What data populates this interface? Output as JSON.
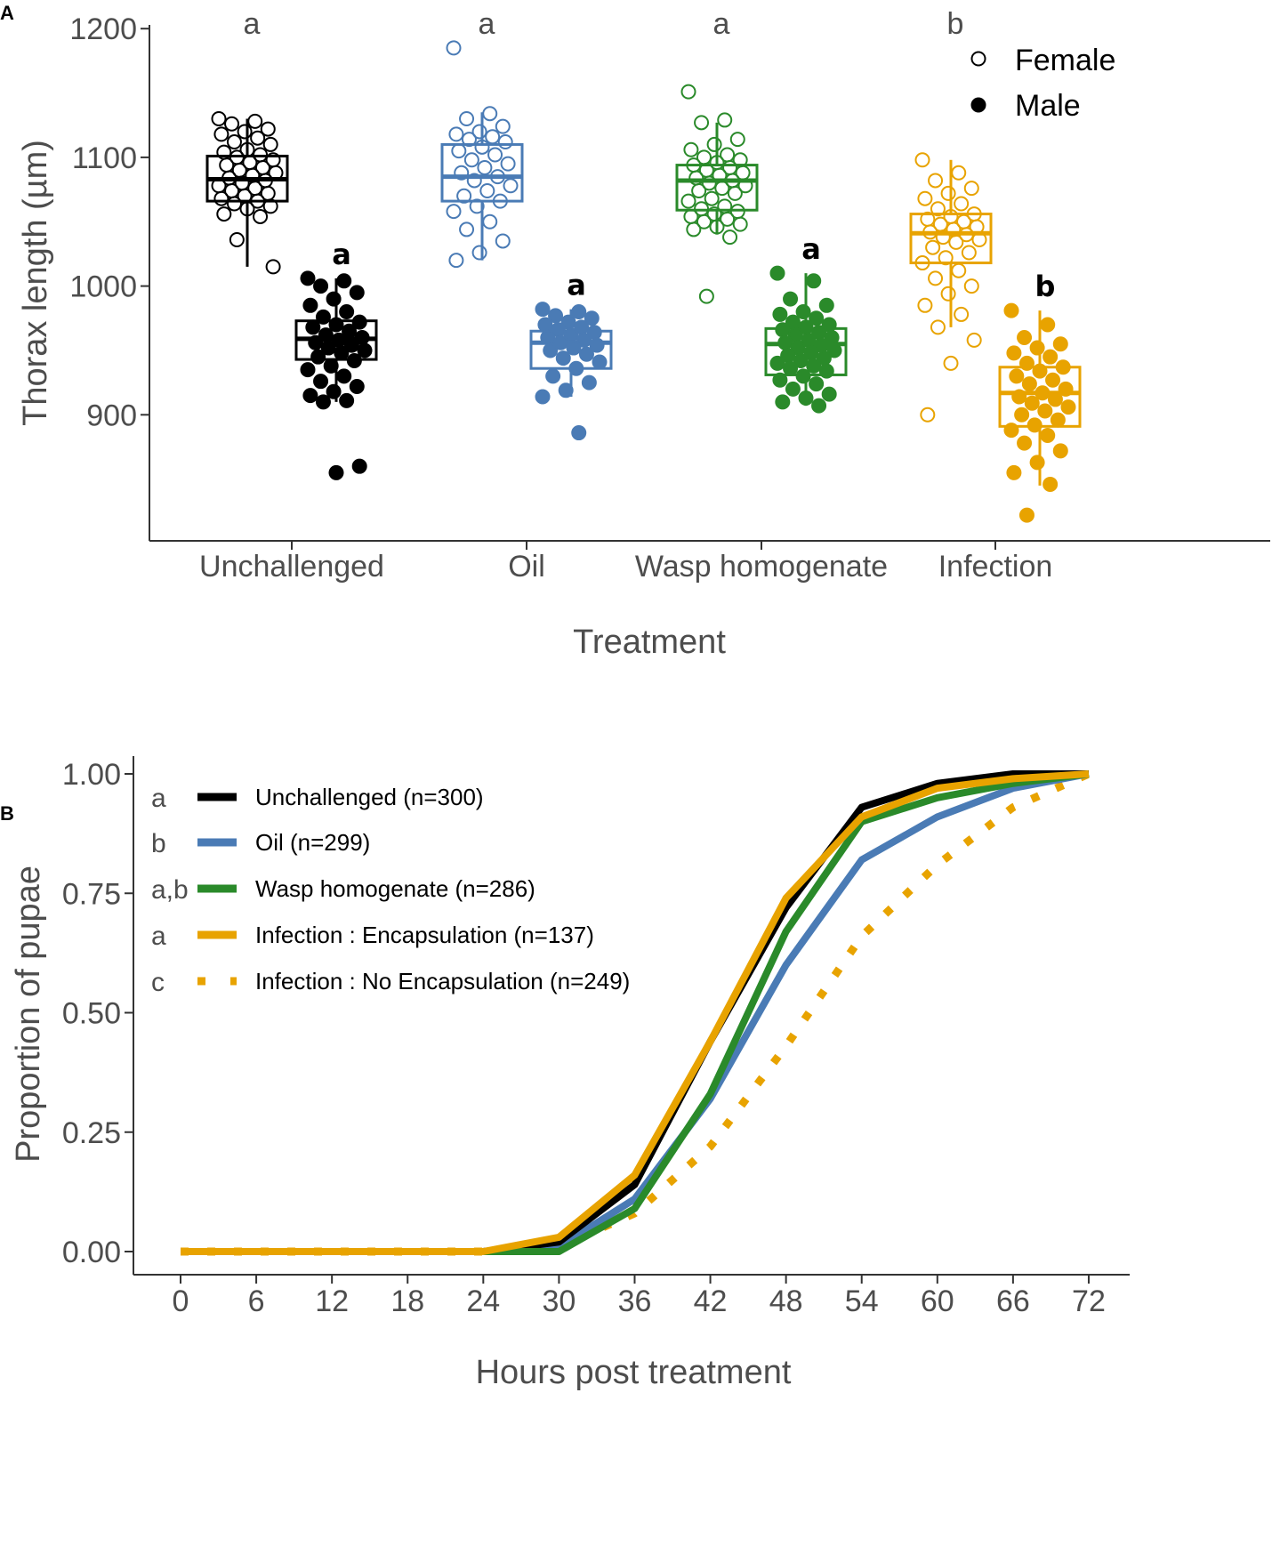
{
  "panels": {
    "a": {
      "label": "A"
    },
    "b": {
      "label": "B"
    }
  },
  "colors": {
    "Unchallenged": "#000000",
    "Oil": "#4a7bb5",
    "Wasp homogenate": "#2a8a2a",
    "Infection": "#e8a300",
    "axis": "#333333",
    "text": "#4d4d4d"
  },
  "chart_data": [
    {
      "type": "box",
      "panel": "A",
      "xlabel": "Treatment",
      "ylabel": "Thorax length (µm)",
      "ylim": [
        800,
        1200
      ],
      "yticks": [
        900,
        1000,
        1100,
        1200
      ],
      "categories": [
        "Unchallenged",
        "Oil",
        "Wasp homogenate",
        "Infection"
      ],
      "legend": {
        "position": "top-right",
        "entries": [
          "Female",
          "Male"
        ]
      },
      "significance_female": [
        "a",
        "a",
        "a",
        "b"
      ],
      "significance_male": [
        "a",
        "a",
        "a",
        "b"
      ],
      "boxes": [
        {
          "category": "Unchallenged",
          "sex": "Female",
          "q1": 1066,
          "median": 1083,
          "q3": 1101,
          "lower": 1015,
          "upper": 1130,
          "points": [
            1130,
            1128,
            1126,
            1122,
            1120,
            1118,
            1115,
            1112,
            1110,
            1106,
            1104,
            1102,
            1100,
            1098,
            1096,
            1094,
            1092,
            1090,
            1088,
            1086,
            1084,
            1082,
            1080,
            1078,
            1076,
            1074,
            1072,
            1070,
            1068,
            1066,
            1064,
            1062,
            1060,
            1056,
            1054,
            1036,
            1015
          ]
        },
        {
          "category": "Unchallenged",
          "sex": "Male",
          "q1": 943,
          "median": 959,
          "q3": 973,
          "lower": 910,
          "upper": 1006,
          "points": [
            1006,
            1004,
            1000,
            995,
            990,
            985,
            980,
            976,
            972,
            970,
            968,
            965,
            962,
            960,
            958,
            956,
            954,
            952,
            950,
            948,
            945,
            942,
            938,
            935,
            930,
            926,
            922,
            918,
            915,
            911,
            910,
            860,
            855
          ]
        },
        {
          "category": "Oil",
          "sex": "Female",
          "q1": 1066,
          "median": 1085,
          "q3": 1110,
          "lower": 1020,
          "upper": 1135,
          "points": [
            1185,
            1134,
            1130,
            1124,
            1120,
            1118,
            1116,
            1114,
            1112,
            1108,
            1105,
            1102,
            1098,
            1095,
            1092,
            1088,
            1085,
            1082,
            1078,
            1074,
            1070,
            1066,
            1062,
            1058,
            1050,
            1044,
            1035,
            1026,
            1020
          ]
        },
        {
          "category": "Oil",
          "sex": "Male",
          "q1": 936,
          "median": 956,
          "q3": 965,
          "lower": 914,
          "upper": 982,
          "points": [
            982,
            980,
            977,
            975,
            972,
            970,
            968,
            966,
            964,
            962,
            960,
            958,
            956,
            954,
            952,
            950,
            947,
            944,
            941,
            936,
            930,
            925,
            919,
            914,
            886
          ]
        },
        {
          "category": "Wasp homogenate",
          "sex": "Female",
          "q1": 1059,
          "median": 1082,
          "q3": 1094,
          "lower": 1040,
          "upper": 1127,
          "points": [
            1151,
            1129,
            1127,
            1114,
            1110,
            1106,
            1102,
            1100,
            1098,
            1096,
            1094,
            1092,
            1090,
            1088,
            1086,
            1084,
            1082,
            1080,
            1078,
            1076,
            1074,
            1072,
            1068,
            1066,
            1062,
            1060,
            1058,
            1056,
            1054,
            1052,
            1050,
            1048,
            1046,
            1044,
            1038,
            992
          ]
        },
        {
          "category": "Wasp homogenate",
          "sex": "Male",
          "q1": 931,
          "median": 955,
          "q3": 967,
          "lower": 907,
          "upper": 1010,
          "points": [
            1010,
            1004,
            990,
            985,
            980,
            978,
            975,
            972,
            970,
            968,
            966,
            964,
            962,
            960,
            958,
            956,
            954,
            952,
            950,
            948,
            946,
            944,
            942,
            940,
            938,
            936,
            934,
            930,
            927,
            924,
            920,
            916,
            913,
            910,
            907
          ]
        },
        {
          "category": "Infection",
          "sex": "Female",
          "q1": 1018,
          "median": 1041,
          "q3": 1056,
          "lower": 968,
          "upper": 1098,
          "points": [
            1098,
            1088,
            1082,
            1076,
            1072,
            1068,
            1064,
            1060,
            1056,
            1054,
            1052,
            1050,
            1048,
            1046,
            1044,
            1042,
            1040,
            1038,
            1036,
            1034,
            1030,
            1026,
            1022,
            1018,
            1012,
            1006,
            1000,
            994,
            985,
            978,
            968,
            958,
            940,
            900
          ]
        },
        {
          "category": "Infection",
          "sex": "Male",
          "q1": 891,
          "median": 917,
          "q3": 937,
          "lower": 845,
          "upper": 981,
          "points": [
            981,
            970,
            960,
            955,
            952,
            948,
            945,
            940,
            937,
            934,
            930,
            927,
            924,
            920,
            917,
            914,
            912,
            909,
            906,
            903,
            900,
            896,
            892,
            888,
            884,
            878,
            872,
            863,
            855,
            846,
            822
          ]
        }
      ]
    },
    {
      "type": "line",
      "panel": "B",
      "xlabel": "Hours post treatment",
      "ylabel": "Proportion of pupae",
      "x": [
        0,
        6,
        12,
        18,
        24,
        30,
        36,
        42,
        48,
        54,
        60,
        66,
        72
      ],
      "xticks": [
        "0",
        "6",
        "12",
        "18",
        "24",
        "30",
        "36",
        "42",
        "48",
        "54",
        "60",
        "66",
        "72"
      ],
      "yticks": [
        "0.00",
        "0.25",
        "0.50",
        "0.75",
        "1.00"
      ],
      "ylim": [
        0,
        1
      ],
      "legend": {
        "position": "top-left"
      },
      "series": [
        {
          "name": "Unchallenged (n=300)",
          "sig": "a",
          "color": "#000000",
          "dashed": false,
          "values": [
            0,
            0,
            0,
            0,
            0,
            0.02,
            0.14,
            0.44,
            0.72,
            0.93,
            0.98,
            1.0,
            1.0
          ]
        },
        {
          "name": "Oil (n=299)",
          "sig": "b",
          "color": "#4a7bb5",
          "dashed": false,
          "values": [
            0,
            0,
            0,
            0,
            0,
            0.01,
            0.11,
            0.32,
            0.6,
            0.82,
            0.91,
            0.97,
            1.0
          ]
        },
        {
          "name": "Wasp homogenate (n=286)",
          "sig": "a,b",
          "color": "#2a8a2a",
          "dashed": false,
          "values": [
            0,
            0,
            0,
            0,
            0,
            0,
            0.09,
            0.33,
            0.67,
            0.9,
            0.95,
            0.98,
            1.0
          ]
        },
        {
          "name": "Infection : Encapsulation (n=137)",
          "sig": "a",
          "color": "#e8a300",
          "dashed": false,
          "values": [
            0,
            0,
            0,
            0,
            0,
            0.03,
            0.16,
            0.44,
            0.74,
            0.91,
            0.97,
            0.99,
            1.0
          ]
        },
        {
          "name": "Infection : No Encapsulation (n=249)",
          "sig": "c",
          "color": "#e8a300",
          "dashed": true,
          "values": [
            0,
            0,
            0,
            0,
            0,
            0.01,
            0.08,
            0.22,
            0.43,
            0.66,
            0.81,
            0.93,
            1.0
          ]
        }
      ]
    }
  ]
}
